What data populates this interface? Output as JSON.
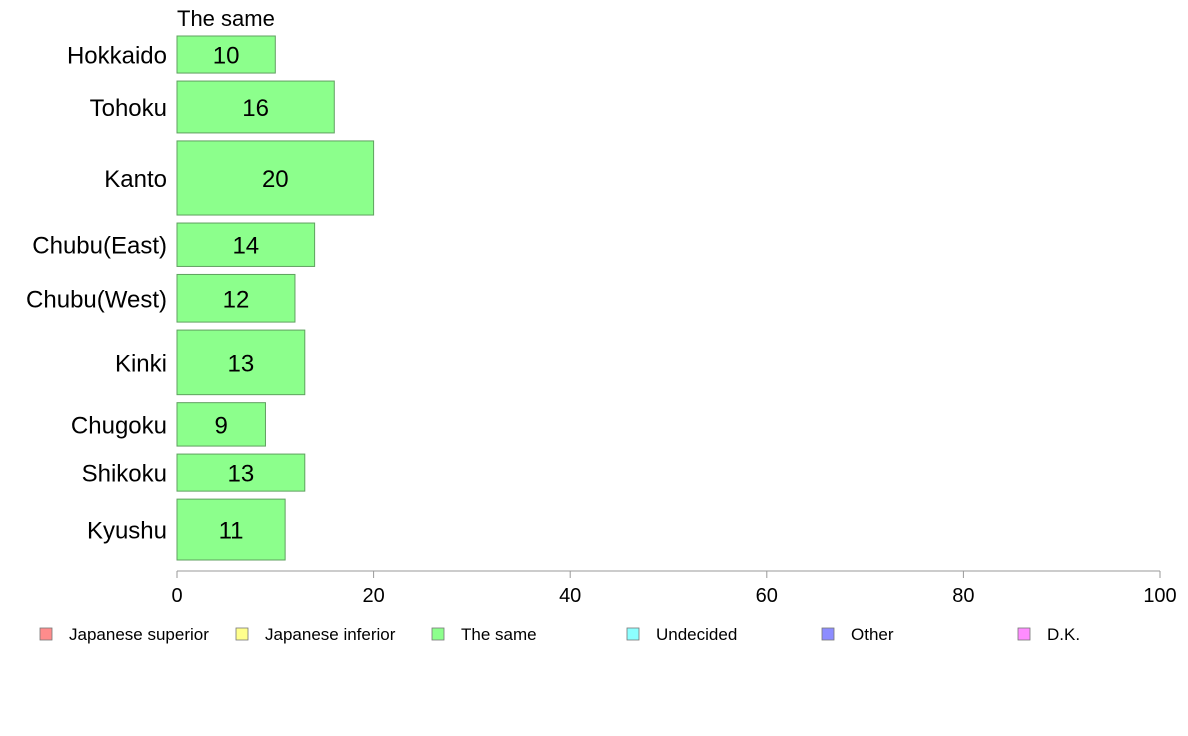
{
  "chart_data": {
    "type": "bar",
    "orientation": "horizontal",
    "title": "The same",
    "categories": [
      "Hokkaido",
      "Tohoku",
      "Kanto",
      "Chubu(East)",
      "Chubu(West)",
      "Kinki",
      "Chugoku",
      "Shikoku",
      "Kyushu"
    ],
    "series": [
      {
        "name": "The same",
        "values": [
          10,
          16,
          20,
          14,
          12,
          13,
          9,
          13,
          11
        ]
      }
    ],
    "data_labels": [
      "10",
      "16",
      "20",
      "14",
      "12",
      "13",
      "9",
      "13",
      "11"
    ],
    "bar_weights": [
      0.7,
      0.98,
      1.4,
      0.82,
      0.9,
      1.22,
      0.82,
      0.7,
      1.15
    ],
    "xlim": [
      0,
      100
    ],
    "xticks": [
      0,
      20,
      40,
      60,
      80,
      100
    ],
    "xtick_labels": [
      "0",
      "20",
      "40",
      "60",
      "80",
      "100"
    ],
    "xlabel": "",
    "ylabel": "",
    "grid": false,
    "legend": {
      "position": "bottom",
      "items": [
        {
          "label": "Japanese superior",
          "color": "#ff8c8c"
        },
        {
          "label": "Japanese inferior",
          "color": "#ffff8c"
        },
        {
          "label": "The same",
          "color": "#8cff8c"
        },
        {
          "label": "Undecided",
          "color": "#8cffff"
        },
        {
          "label": "Other",
          "color": "#8c8cff"
        },
        {
          "label": "D.K.",
          "color": "#ff8cff"
        }
      ]
    },
    "bar_color": "#8cff8c",
    "bar_edge_color": "#5fa05f",
    "axis_color": "#999999"
  }
}
